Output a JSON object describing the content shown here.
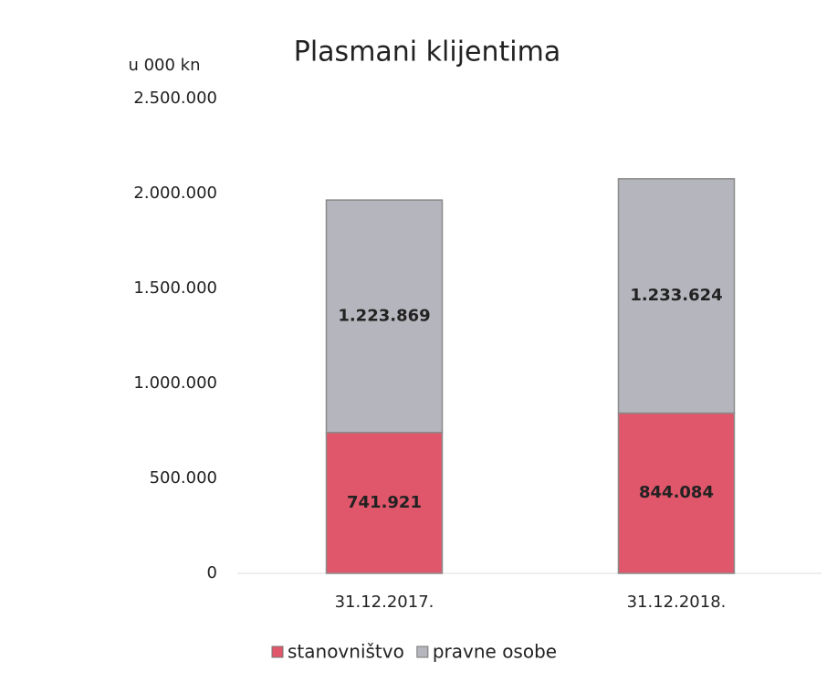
{
  "chart_data": {
    "type": "stacked_bar",
    "title": "Plasmani klijentima",
    "y_label": "u 000 kn",
    "categories": [
      "31.12.2017.",
      "31.12.2018."
    ],
    "series": [
      {
        "name": "stanovništvo",
        "color": "#e0566a",
        "values": [
          741921,
          844084
        ],
        "value_labels": [
          "741.921",
          "844.084"
        ]
      },
      {
        "name": "pravne osobe",
        "color": "#b5b5bd",
        "values": [
          1223869,
          1233624
        ],
        "value_labels": [
          "1.223.869",
          "1.233.624"
        ]
      }
    ],
    "ylim": [
      0,
      2500000
    ],
    "yticks": [
      0,
      {
        "value": 500000,
        "label": "500.000"
      },
      {
        "value": 1000000,
        "label": "1.000.000"
      },
      {
        "value": 1500000,
        "label": "1.500.000"
      },
      {
        "value": 2000000,
        "label": "2.000.000"
      },
      {
        "value": 2500000,
        "label": "2.500.000"
      }
    ],
    "legend": "bottom"
  }
}
